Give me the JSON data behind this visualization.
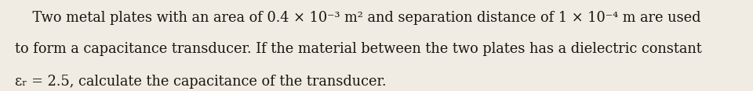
{
  "background_color": "#f0ece4",
  "text_color": "#1a1510",
  "line1": "    Two metal plates with an area of 0.4 × 10⁻³ m² and separation distance of 1 × 10⁻⁴ m are used",
  "line2": "to form a capacitance transducer. If the material between the two plates has a dielectric constant",
  "line3": "εᵣ = 2.5, calculate the capacitance of the transducer.",
  "fontsize": 12.8,
  "font_family": "serif",
  "fontweight": "normal"
}
